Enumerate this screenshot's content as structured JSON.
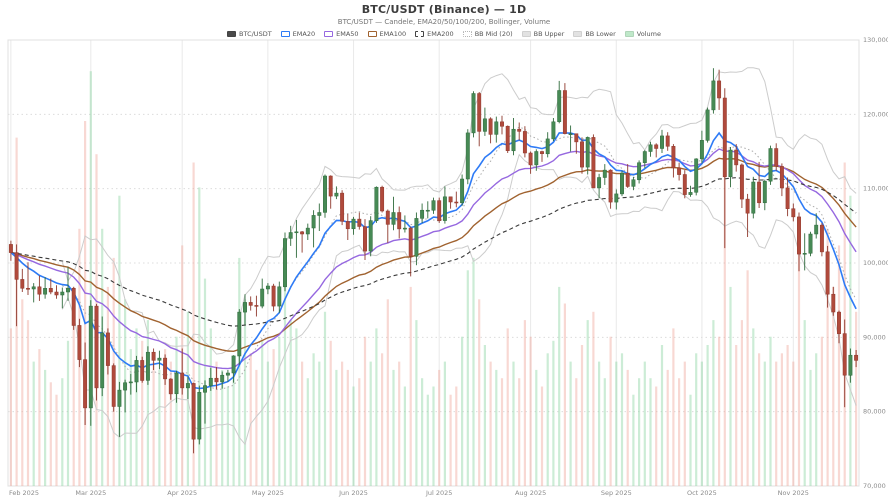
{
  "header": {
    "title": "BTC/USDT (Binance) — 1D",
    "subtitle": "BTC/USDT — Candele, EMA20/50/100/200, Bollinger, Volume"
  },
  "legend": {
    "items": [
      {
        "label": "BTC/USDT",
        "swatch": "fill",
        "color": "#4a4a4a"
      },
      {
        "label": "EMA20",
        "swatch": "stroke",
        "color": "#2e7bf6"
      },
      {
        "label": "EMA50",
        "swatch": "stroke",
        "color": "#9668e0"
      },
      {
        "label": "EMA100",
        "swatch": "stroke",
        "color": "#a0622f"
      },
      {
        "label": "EMA200",
        "swatch": "dash",
        "color": "#444444"
      },
      {
        "label": "BB Mid (20)",
        "swatch": "dot",
        "color": "#b5b5b5"
      },
      {
        "label": "BB Upper",
        "swatch": "fill",
        "color": "#e2e2e2"
      },
      {
        "label": "BB Lower",
        "swatch": "fill",
        "color": "#e2e2e2"
      },
      {
        "label": "Volume",
        "swatch": "fill",
        "color": "#bfe8c9"
      }
    ]
  },
  "chart_data": {
    "type": "candlestick",
    "title": "BTC/USDT (Binance) — 1D",
    "symbol": "BTC/USDT",
    "exchange": "Binance",
    "interval": "1D",
    "x_range": [
      "Feb 2025",
      "Nov 2025"
    ],
    "ylim": [
      70000,
      130000
    ],
    "grid": true,
    "legend_position": "top-center",
    "price_scale": 1000,
    "series_format": "[open, high, low, close, volume_rel] — prices in thousands of USDT, volume relative 0–100",
    "y_ticks": [
      {
        "value": 70000,
        "label": "70,000"
      },
      {
        "value": 80000,
        "label": "80,000"
      },
      {
        "value": 90000,
        "label": "90,000"
      },
      {
        "value": 100000,
        "label": "100,000"
      },
      {
        "value": 110000,
        "label": "110,000"
      },
      {
        "value": 120000,
        "label": "120,000"
      },
      {
        "value": 130000,
        "label": "130,000"
      }
    ],
    "x_ticks": [
      {
        "i": 0,
        "label": "Feb 2025"
      },
      {
        "i": 14,
        "label": "Mar 2025"
      },
      {
        "i": 30,
        "label": "Apr 2025"
      },
      {
        "i": 45,
        "label": "May 2025"
      },
      {
        "i": 60,
        "label": "Jun 2025"
      },
      {
        "i": 75,
        "label": "Jul 2025"
      },
      {
        "i": 91,
        "label": "Aug 2025"
      },
      {
        "i": 106,
        "label": "Sep 2025"
      },
      {
        "i": 121,
        "label": "Oct 2025"
      },
      {
        "i": 137,
        "label": "Nov 2025"
      }
    ],
    "overlays": [
      {
        "name": "EMA20",
        "period": 20,
        "color": "#2e7bf6",
        "style": "solid"
      },
      {
        "name": "EMA50",
        "period": 50,
        "color": "#9668e0",
        "style": "solid"
      },
      {
        "name": "EMA100",
        "period": 100,
        "color": "#a0622f",
        "style": "solid"
      },
      {
        "name": "EMA200",
        "period": 200,
        "color": "#444444",
        "style": "dashed"
      },
      {
        "name": "BB Mid (20)",
        "period": 20,
        "color": "#aaaaaa",
        "style": "dotted"
      },
      {
        "name": "BB Upper",
        "color": "#cccccc",
        "style": "solid"
      },
      {
        "name": "BB Lower",
        "color": "#cccccc",
        "style": "solid"
      }
    ],
    "colors": {
      "candle_up": "#478a55",
      "candle_up_border": "#2f6b3c",
      "candle_down": "#b04a3c",
      "candle_down_border": "#8f382c",
      "vol_up": "#8fd4a4",
      "vol_down": "#f0a89e",
      "grid": "#e9e9e9",
      "border": "#e0e0e0",
      "axis_text": "#8c8c8c"
    },
    "candles": [
      [
        102.5,
        103.0,
        100.3,
        101.4,
        38
      ],
      [
        101.4,
        102.5,
        91.5,
        97.8,
        84
      ],
      [
        97.8,
        99.2,
        96.1,
        96.6,
        45
      ],
      [
        96.6,
        100.1,
        95.7,
        96.5,
        40
      ],
      [
        96.5,
        97.3,
        94.7,
        96.8,
        30
      ],
      [
        96.8,
        98.3,
        94.9,
        95.8,
        33
      ],
      [
        95.8,
        98.1,
        95.2,
        96.6,
        28
      ],
      [
        96.6,
        97.9,
        95.8,
        96.1,
        25
      ],
      [
        96.1,
        97.0,
        95.2,
        95.7,
        22
      ],
      [
        95.7,
        96.7,
        93.9,
        96.1,
        26
      ],
      [
        96.1,
        99.5,
        94.9,
        96.6,
        35
      ],
      [
        96.6,
        96.8,
        91.0,
        91.6,
        48
      ],
      [
        91.6,
        92.5,
        86.0,
        87.0,
        62
      ],
      [
        87.0,
        89.3,
        78.2,
        80.5,
        88
      ],
      [
        80.5,
        95.0,
        78.1,
        94.2,
        100
      ],
      [
        94.2,
        94.5,
        81.5,
        83.2,
        80
      ],
      [
        83.2,
        92.8,
        82.1,
        90.6,
        62
      ],
      [
        90.6,
        91.2,
        85.0,
        86.2,
        48
      ],
      [
        86.2,
        86.5,
        80.0,
        80.7,
        55
      ],
      [
        80.7,
        84.0,
        76.6,
        82.9,
        70
      ],
      [
        82.9,
        84.3,
        79.9,
        83.9,
        45
      ],
      [
        83.9,
        85.1,
        82.3,
        84.0,
        33
      ],
      [
        84.0,
        87.5,
        82.6,
        86.9,
        38
      ],
      [
        86.9,
        87.4,
        83.9,
        84.2,
        35
      ],
      [
        84.2,
        88.8,
        83.6,
        88.0,
        40
      ],
      [
        88.0,
        88.5,
        85.6,
        86.9,
        30
      ],
      [
        86.9,
        88.2,
        85.7,
        87.2,
        28
      ],
      [
        87.2,
        87.7,
        83.6,
        84.4,
        33
      ],
      [
        84.4,
        84.5,
        81.6,
        82.4,
        30
      ],
      [
        82.4,
        85.5,
        81.2,
        85.2,
        36
      ],
      [
        85.2,
        88.5,
        82.3,
        83.2,
        58
      ],
      [
        83.2,
        84.7,
        81.7,
        83.8,
        42
      ],
      [
        83.8,
        83.9,
        74.4,
        76.3,
        78
      ],
      [
        76.3,
        83.5,
        75.6,
        82.6,
        72
      ],
      [
        82.6,
        84.2,
        78.4,
        83.5,
        50
      ],
      [
        83.5,
        85.9,
        82.8,
        84.5,
        38
      ],
      [
        84.5,
        86.0,
        83.0,
        84.0,
        30
      ],
      [
        84.0,
        85.4,
        83.1,
        84.9,
        28
      ],
      [
        84.9,
        85.6,
        84.0,
        85.2,
        24
      ],
      [
        85.2,
        87.6,
        83.9,
        87.5,
        30
      ],
      [
        87.5,
        93.8,
        86.3,
        93.4,
        55
      ],
      [
        93.4,
        95.8,
        91.7,
        94.7,
        45
      ],
      [
        94.7,
        95.5,
        93.6,
        94.3,
        32
      ],
      [
        94.3,
        95.6,
        92.8,
        94.2,
        28
      ],
      [
        94.2,
        97.9,
        93.9,
        96.5,
        35
      ],
      [
        96.5,
        97.3,
        95.8,
        96.9,
        30
      ],
      [
        96.9,
        97.2,
        93.5,
        94.2,
        33
      ],
      [
        94.2,
        97.5,
        93.3,
        96.8,
        36
      ],
      [
        96.8,
        104.1,
        96.2,
        103.3,
        48
      ],
      [
        103.3,
        105.0,
        102.3,
        104.1,
        40
      ],
      [
        104.1,
        105.8,
        100.7,
        104.2,
        38
      ],
      [
        104.2,
        104.3,
        101.4,
        103.9,
        30
      ],
      [
        103.9,
        105.3,
        103.1,
        104.7,
        26
      ],
      [
        104.7,
        107.1,
        102.1,
        106.4,
        32
      ],
      [
        106.4,
        108.0,
        104.3,
        106.8,
        30
      ],
      [
        106.8,
        111.9,
        106.1,
        111.7,
        42
      ],
      [
        111.7,
        111.8,
        107.3,
        109.0,
        35
      ],
      [
        109.0,
        110.3,
        108.6,
        109.4,
        28
      ],
      [
        109.4,
        109.8,
        105.1,
        105.6,
        30
      ],
      [
        105.6,
        106.6,
        103.1,
        104.6,
        28
      ],
      [
        104.6,
        106.2,
        103.8,
        105.9,
        24
      ],
      [
        105.9,
        106.8,
        104.5,
        104.9,
        26
      ],
      [
        104.9,
        105.9,
        100.4,
        101.6,
        36
      ],
      [
        101.6,
        106.3,
        100.9,
        105.7,
        30
      ],
      [
        105.7,
        110.3,
        105.4,
        110.2,
        38
      ],
      [
        110.2,
        110.4,
        106.8,
        107.0,
        32
      ],
      [
        107.0,
        107.2,
        102.7,
        105.2,
        45
      ],
      [
        105.2,
        108.9,
        104.4,
        106.8,
        28
      ],
      [
        106.8,
        107.6,
        103.3,
        104.6,
        30
      ],
      [
        104.6,
        106.4,
        104.1,
        104.7,
        24
      ],
      [
        104.7,
        104.9,
        98.2,
        100.9,
        48
      ],
      [
        100.9,
        106.8,
        99.7,
        106.0,
        40
      ],
      [
        106.0,
        108.0,
        105.4,
        107.1,
        26
      ],
      [
        107.1,
        108.3,
        106.0,
        107.1,
        22
      ],
      [
        107.1,
        108.8,
        106.6,
        108.4,
        24
      ],
      [
        108.4,
        108.8,
        105.4,
        105.7,
        28
      ],
      [
        105.7,
        110.3,
        105.3,
        108.9,
        30
      ],
      [
        108.9,
        108.9,
        107.3,
        108.2,
        22
      ],
      [
        108.2,
        109.6,
        107.5,
        108.1,
        24
      ],
      [
        108.1,
        111.9,
        107.7,
        111.3,
        36
      ],
      [
        111.3,
        118.0,
        110.6,
        117.5,
        52
      ],
      [
        117.5,
        123.1,
        116.9,
        122.8,
        55
      ],
      [
        122.8,
        123.0,
        115.7,
        117.7,
        45
      ],
      [
        117.7,
        120.9,
        117.1,
        119.4,
        34
      ],
      [
        119.4,
        119.6,
        116.1,
        117.3,
        30
      ],
      [
        117.3,
        119.7,
        116.2,
        119.0,
        28
      ],
      [
        119.0,
        119.8,
        117.3,
        118.4,
        26
      ],
      [
        118.4,
        118.5,
        114.8,
        115.1,
        38
      ],
      [
        115.1,
        119.5,
        114.5,
        118.0,
        30
      ],
      [
        118.0,
        118.9,
        116.5,
        117.7,
        26
      ],
      [
        117.7,
        118.4,
        114.2,
        114.8,
        40
      ],
      [
        114.8,
        115.0,
        112.0,
        113.2,
        36
      ],
      [
        113.2,
        115.3,
        112.4,
        115.0,
        28
      ],
      [
        115.0,
        115.1,
        113.6,
        114.7,
        24
      ],
      [
        114.7,
        117.6,
        114.2,
        116.7,
        32
      ],
      [
        116.7,
        119.5,
        116.4,
        119.0,
        35
      ],
      [
        119.0,
        124.5,
        118.8,
        123.2,
        48
      ],
      [
        123.2,
        124.2,
        117.3,
        117.4,
        44
      ],
      [
        117.4,
        118.5,
        115.0,
        117.4,
        30
      ],
      [
        117.4,
        117.4,
        114.7,
        116.3,
        26
      ],
      [
        116.3,
        116.9,
        112.0,
        112.9,
        34
      ],
      [
        112.9,
        117.0,
        111.9,
        116.9,
        40
      ],
      [
        116.9,
        117.3,
        110.1,
        110.1,
        42
      ],
      [
        110.1,
        112.0,
        108.7,
        111.5,
        30
      ],
      [
        111.5,
        113.3,
        110.5,
        112.5,
        26
      ],
      [
        112.5,
        112.6,
        107.3,
        108.2,
        36
      ],
      [
        108.2,
        109.9,
        107.2,
        109.3,
        30
      ],
      [
        109.3,
        112.4,
        109.0,
        112.1,
        32
      ],
      [
        112.1,
        113.3,
        110.1,
        110.3,
        28
      ],
      [
        110.3,
        111.6,
        109.8,
        111.2,
        22
      ],
      [
        111.2,
        113.8,
        110.7,
        113.5,
        26
      ],
      [
        113.5,
        115.2,
        112.8,
        115.0,
        30
      ],
      [
        115.0,
        116.3,
        114.3,
        115.9,
        26
      ],
      [
        115.9,
        116.1,
        114.2,
        115.4,
        24
      ],
      [
        115.4,
        117.9,
        114.8,
        117.1,
        34
      ],
      [
        117.1,
        117.6,
        115.1,
        115.7,
        28
      ],
      [
        115.7,
        116.0,
        111.5,
        112.8,
        38
      ],
      [
        112.8,
        113.5,
        111.1,
        111.9,
        26
      ],
      [
        111.9,
        112.5,
        108.7,
        109.2,
        30
      ],
      [
        109.2,
        110.4,
        108.9,
        109.5,
        22
      ],
      [
        109.5,
        114.1,
        109.1,
        114.0,
        32
      ],
      [
        114.0,
        117.8,
        113.4,
        116.5,
        30
      ],
      [
        116.5,
        120.9,
        116.2,
        120.6,
        34
      ],
      [
        120.6,
        126.2,
        120.1,
        124.5,
        40
      ],
      [
        124.5,
        126.0,
        120.6,
        122.2,
        36
      ],
      [
        122.2,
        123.5,
        102.0,
        111.6,
        92
      ],
      [
        111.6,
        115.6,
        110.2,
        115.2,
        48
      ],
      [
        115.2,
        116.0,
        112.3,
        113.2,
        34
      ],
      [
        113.2,
        113.4,
        107.4,
        108.6,
        40
      ],
      [
        108.6,
        109.3,
        103.5,
        106.7,
        52
      ],
      [
        106.7,
        111.6,
        106.0,
        110.9,
        38
      ],
      [
        110.9,
        113.6,
        107.4,
        108.1,
        32
      ],
      [
        108.1,
        111.2,
        107.1,
        111.0,
        30
      ],
      [
        111.0,
        115.8,
        110.5,
        115.4,
        36
      ],
      [
        115.4,
        116.1,
        112.4,
        113.0,
        30
      ],
      [
        113.0,
        113.4,
        109.0,
        110.1,
        32
      ],
      [
        110.1,
        111.5,
        106.3,
        107.3,
        34
      ],
      [
        107.3,
        108.0,
        105.6,
        106.2,
        30
      ],
      [
        106.2,
        106.8,
        98.9,
        101.2,
        56
      ],
      [
        101.2,
        104.0,
        99.0,
        101.3,
        40
      ],
      [
        101.3,
        104.2,
        100.9,
        103.9,
        28
      ],
      [
        103.9,
        106.7,
        103.3,
        105.1,
        32
      ],
      [
        105.1,
        105.4,
        100.9,
        101.5,
        36
      ],
      [
        101.5,
        102.3,
        94.0,
        95.8,
        62
      ],
      [
        95.8,
        96.8,
        92.9,
        93.4,
        48
      ],
      [
        93.4,
        93.6,
        89.2,
        90.5,
        58
      ],
      [
        90.5,
        92.4,
        80.6,
        84.9,
        78
      ],
      [
        84.9,
        88.5,
        83.9,
        87.6,
        70
      ],
      [
        87.6,
        88.3,
        86.0,
        86.9,
        42
      ]
    ]
  }
}
